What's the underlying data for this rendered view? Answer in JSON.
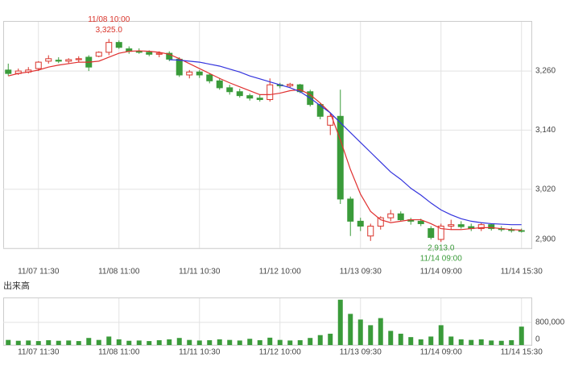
{
  "chart_data": {
    "type": "candlestick",
    "categories": [
      null,
      null,
      null,
      "11/07 11:30",
      null,
      null,
      null,
      null,
      null,
      null,
      null,
      "11/08 11:00",
      null,
      null,
      null,
      null,
      null,
      null,
      null,
      "11/11 10:30",
      null,
      null,
      null,
      null,
      null,
      null,
      null,
      "11/12 10:00",
      null,
      null,
      null,
      null,
      null,
      null,
      null,
      "11/13 09:30",
      null,
      null,
      null,
      null,
      null,
      null,
      null,
      "11/14 09:00",
      null,
      null,
      null,
      null,
      null,
      null,
      null,
      "11/14 15:30"
    ],
    "open": [
      3262,
      3255,
      3258,
      3265,
      3280,
      3282,
      3280,
      3283,
      3288,
      3290,
      3298,
      3318,
      3305,
      3300,
      3298,
      3294,
      3296,
      3284,
      3252,
      3258,
      3252,
      3240,
      3226,
      3218,
      3210,
      3205,
      3202,
      3232,
      3230,
      3232,
      3218,
      3192,
      3150,
      3168,
      3000,
      2955,
      2925,
      2945,
      2962,
      2970,
      2958,
      2955,
      2940,
      2918,
      2945,
      2948,
      2944,
      2940,
      2948,
      2940,
      2938,
      2936
    ],
    "high": [
      3275,
      3265,
      3268,
      3280,
      3292,
      3288,
      3286,
      3290,
      3292,
      3300,
      3325,
      3322,
      3310,
      3306,
      3302,
      3300,
      3300,
      3288,
      3262,
      3262,
      3256,
      3246,
      3232,
      3224,
      3214,
      3212,
      3245,
      3236,
      3236,
      3234,
      3222,
      3195,
      3175,
      3222,
      3005,
      2962,
      2950,
      2965,
      2978,
      2975,
      2962,
      2960,
      2945,
      2950,
      2958,
      2955,
      2950,
      2952,
      2950,
      2945,
      2942,
      2940
    ],
    "low": [
      3250,
      3252,
      3255,
      3260,
      3275,
      3276,
      3275,
      3278,
      3260,
      3288,
      3292,
      3305,
      3295,
      3295,
      3290,
      3288,
      3280,
      3248,
      3245,
      3246,
      3235,
      3222,
      3212,
      3206,
      3200,
      3198,
      3198,
      3225,
      3226,
      3215,
      3188,
      3162,
      3130,
      2990,
      2925,
      2935,
      2915,
      2938,
      2955,
      2955,
      2948,
      2945,
      2918,
      2913,
      2938,
      2940,
      2935,
      2935,
      2936,
      2934,
      2932,
      2932
    ],
    "close": [
      3255,
      3260,
      3262,
      3278,
      3285,
      3280,
      3283,
      3285,
      3268,
      3298,
      3318,
      3308,
      3300,
      3298,
      3294,
      3296,
      3284,
      3252,
      3258,
      3252,
      3240,
      3226,
      3218,
      3210,
      3205,
      3202,
      3232,
      3230,
      3233,
      3218,
      3192,
      3168,
      3168,
      3000,
      2955,
      2945,
      2945,
      2962,
      2970,
      2958,
      2955,
      2950,
      2922,
      2945,
      2948,
      2944,
      2940,
      2948,
      2940,
      2938,
      2936,
      2935
    ],
    "up_color": "#d9342b",
    "down_color": "#3a9b3a",
    "lines": [
      {
        "color": "#e03030",
        "values": [
          3250,
          3255,
          3258,
          3262,
          3268,
          3272,
          3275,
          3278,
          3278,
          3280,
          3288,
          3296,
          3300,
          3301,
          3300,
          3298,
          3294,
          3285,
          3275,
          3265,
          3255,
          3245,
          3236,
          3228,
          3220,
          3212,
          3212,
          3215,
          3220,
          3222,
          3212,
          3195,
          3175,
          3120,
          3060,
          3010,
          2975,
          2958,
          2952,
          2955,
          2958,
          2958,
          2950,
          2940,
          2938,
          2938,
          2940,
          2942,
          2942,
          2940,
          2938,
          2937
        ]
      },
      {
        "color": "#3333dd",
        "values": [
          null,
          null,
          null,
          null,
          null,
          null,
          null,
          null,
          null,
          null,
          null,
          null,
          null,
          null,
          null,
          null,
          3283,
          3282,
          3280,
          3278,
          3274,
          3270,
          3264,
          3258,
          3250,
          3244,
          3238,
          3232,
          3226,
          3218,
          3205,
          3190,
          3175,
          3155,
          3135,
          3115,
          3095,
          3075,
          3055,
          3040,
          3022,
          3008,
          2992,
          2978,
          2968,
          2960,
          2955,
          2952,
          2950,
          2949,
          2948,
          2948
        ]
      }
    ],
    "ylim": [
      2900,
      3360
    ],
    "yticks": [
      {
        "value": 2900,
        "label": "2,900"
      },
      {
        "value": 3020,
        "label": "3,020"
      },
      {
        "value": 3140,
        "label": "3,140"
      },
      {
        "value": 3260,
        "label": "3,260"
      }
    ],
    "high_mark": {
      "time": "11/08 10:00",
      "value": 3325,
      "label": "3,325.0"
    },
    "low_mark": {
      "time": "11/14 09:00",
      "value": 2913,
      "label": "2,913.0"
    },
    "volume": {
      "title": "出来高",
      "color": "#3a9b3a",
      "values": [
        180000,
        150000,
        160000,
        140000,
        170000,
        150000,
        160000,
        140000,
        250000,
        180000,
        300000,
        200000,
        150000,
        160000,
        140000,
        170000,
        200000,
        250000,
        180000,
        160000,
        170000,
        200000,
        180000,
        160000,
        220000,
        170000,
        260000,
        180000,
        160000,
        170000,
        250000,
        350000,
        400000,
        1600000,
        1100000,
        900000,
        700000,
        950000,
        500000,
        400000,
        280000,
        200000,
        300000,
        700000,
        300000,
        200000,
        180000,
        200000,
        160000,
        150000,
        170000,
        650000
      ],
      "ylim": [
        0,
        1650000
      ],
      "yticks": [
        0,
        {
          "value": 800000,
          "label": "800,000"
        }
      ]
    }
  }
}
